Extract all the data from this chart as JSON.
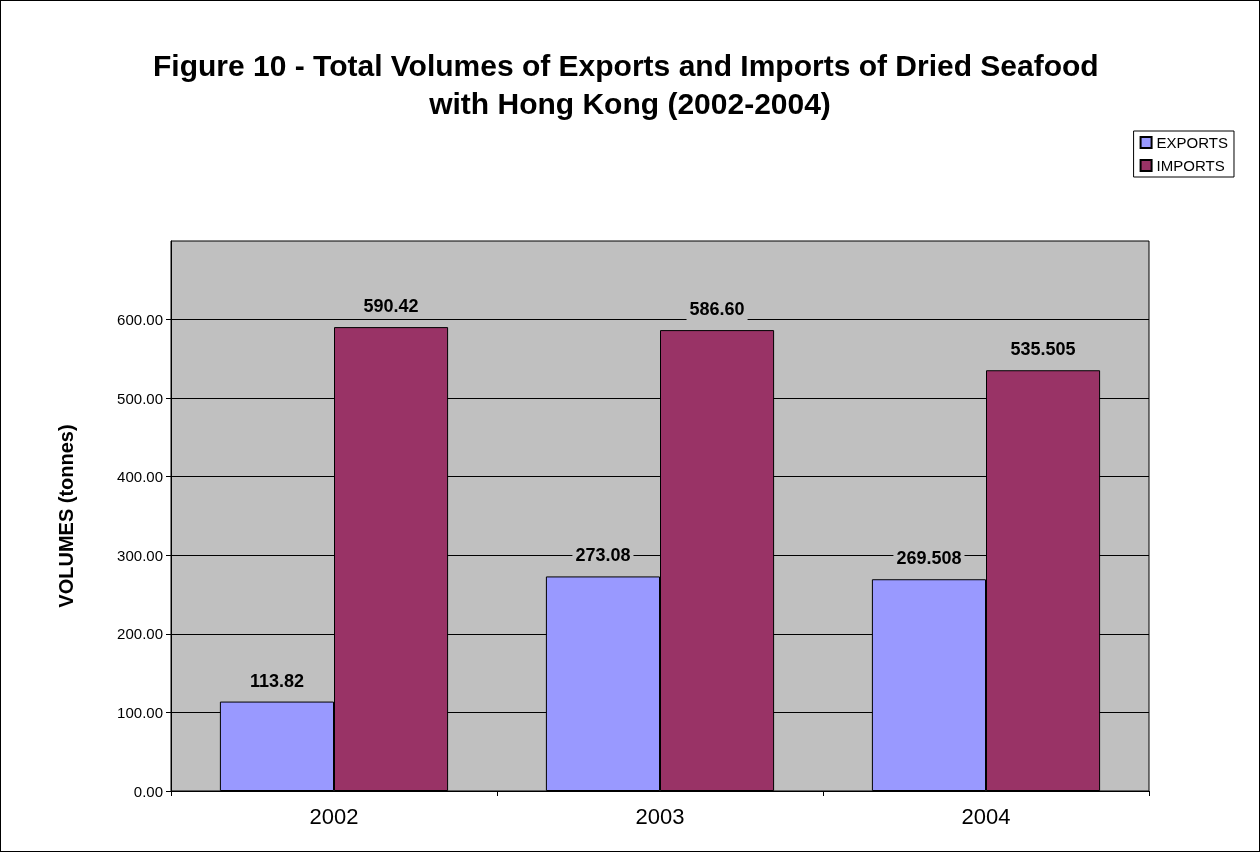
{
  "chart_data": {
    "type": "bar",
    "title": "Figure 10 - Total Volumes of Exports and Imports of Dried Seafood with Hong Kong (2002-2004)",
    "ylabel": "VOLUMES (tonnes)",
    "categories": [
      "2002",
      "2003",
      "2004"
    ],
    "series": [
      {
        "name": "EXPORTS",
        "color": "#9999ff",
        "values": [
          113.82,
          273.08,
          269.508
        ],
        "value_labels": [
          "113.82",
          "273.08",
          "269.508"
        ]
      },
      {
        "name": "IMPORTS",
        "color": "#993366",
        "values": [
          590.42,
          586.6,
          535.505
        ],
        "value_labels": [
          "590.42",
          "586.60",
          "535.505"
        ]
      }
    ],
    "ylim": [
      0,
      700
    ],
    "yticks": [
      {
        "value": 0,
        "label": "0.00"
      },
      {
        "value": 100,
        "label": "100.00"
      },
      {
        "value": 200,
        "label": "200.00"
      },
      {
        "value": 300,
        "label": "300.00"
      },
      {
        "value": 400,
        "label": "400.00"
      },
      {
        "value": 500,
        "label": "500.00"
      },
      {
        "value": 600,
        "label": "600.00"
      }
    ],
    "grid": "y",
    "legend": "top right"
  }
}
